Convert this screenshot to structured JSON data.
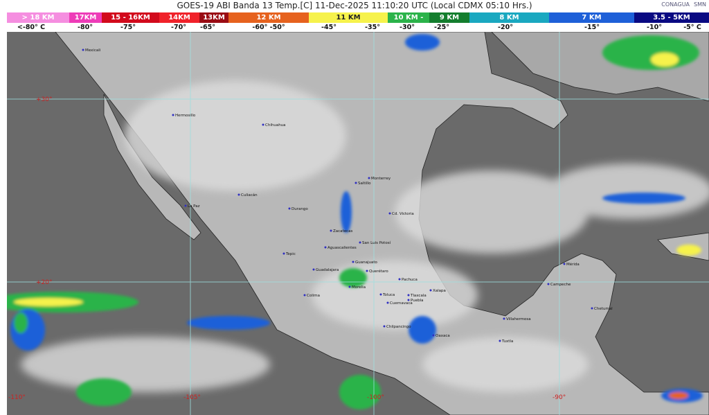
{
  "header": {
    "title": "GOES-19 ABI Banda 13 Temp.[C] 11-Dec-2025 11:10:20 UTC (Local CDMX  05:10 Hrs.)",
    "logos": [
      "CONAGUA",
      "SMN"
    ]
  },
  "legend": {
    "segments": [
      {
        "label": "> 18 KM",
        "color": "#f58ee0"
      },
      {
        "label": "17KM",
        "color": "#ee3cb8"
      },
      {
        "label": "15 - 16KM",
        "color": "#d20a1c"
      },
      {
        "label": "14KM",
        "color": "#f0222a"
      },
      {
        "label": "13KM",
        "color": "#9a0c14"
      },
      {
        "label": "12 KM",
        "color": "#e6621e"
      },
      {
        "label": "11 KM",
        "color": "#f6f24c"
      },
      {
        "label": "10 KM -",
        "color": "#2bb34a"
      },
      {
        "label": "9 KM",
        "color": "#147e2e"
      },
      {
        "label": "8 KM",
        "color": "#1aa8c0"
      },
      {
        "label": "7 KM",
        "color": "#1e60d8"
      },
      {
        "label": "3.5 - 5KM",
        "color": "#0a0a82"
      }
    ],
    "temperatures": [
      "<-80° C",
      "-80°",
      "-75°",
      "-70°",
      "-65°",
      "-60°  -50°",
      "-45°",
      "-35°",
      "-30°",
      "-25°",
      "-20°",
      "-15°",
      "-10°",
      "-5°  C"
    ]
  },
  "map": {
    "gridlines": {
      "latitudes": [
        "+30°",
        "+20°"
      ],
      "longitudes": [
        "-110°",
        "-105°",
        "-100°",
        "-90°"
      ]
    },
    "cities": [
      "Mexicali",
      "Hermosillo",
      "Chihuahua",
      "La Paz",
      "Culiacán",
      "Durango",
      "Saltillo",
      "Monterrey",
      "Cd. Victoria",
      "Zacatecas",
      "San Luis Potosí",
      "Tepic",
      "Aguascalientes",
      "Guadalajara",
      "Guanajuato",
      "Querétaro",
      "Morelia",
      "Pachuca",
      "Colima",
      "Toluca",
      "Tlaxcala",
      "Puebla",
      "Cuernavaca",
      "Xalapa",
      "Chilpancingo",
      "Oaxaca",
      "Villahermosa",
      "Tuxtla",
      "Mérida",
      "Campeche",
      "Chetumal"
    ]
  }
}
